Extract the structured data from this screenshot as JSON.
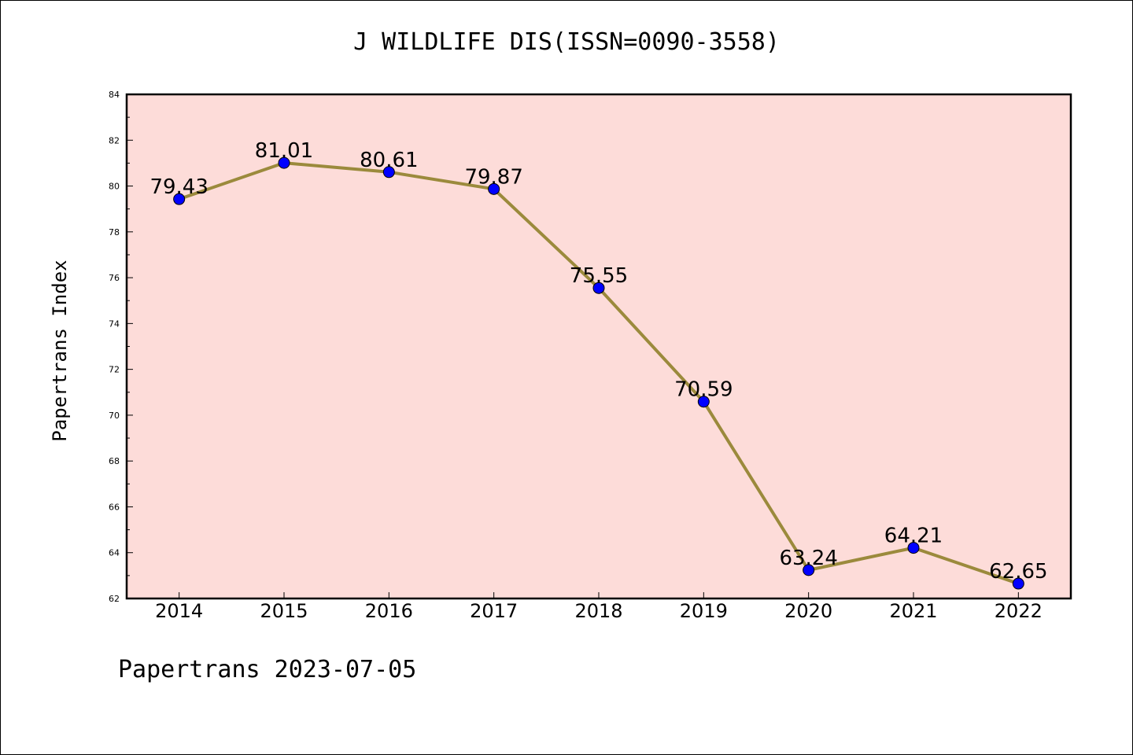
{
  "page": {
    "title": "J WILDLIFE DIS(ISSN=0090-3558)",
    "footer": "Papertrans 2023-07-05"
  },
  "chart_data": {
    "type": "line",
    "title": "J WILDLIFE DIS(ISSN=0090-3558)",
    "xlabel": "",
    "ylabel": "Papertrans Index",
    "categories": [
      "2014",
      "2015",
      "2016",
      "2017",
      "2018",
      "2019",
      "2020",
      "2021",
      "2022"
    ],
    "series": [
      {
        "values": [
          79.43,
          81.01,
          80.61,
          79.87,
          75.55,
          70.59,
          63.24,
          64.21,
          62.65
        ],
        "data_labels": [
          "79.43",
          "81.01",
          "80.61",
          "79.87",
          "75.55",
          "70.59",
          "63.24",
          "64.21",
          "62.65"
        ]
      }
    ],
    "ylim": [
      62,
      84
    ],
    "yticks": [
      "62",
      "64",
      "66",
      "68",
      "70",
      "72",
      "74",
      "76",
      "78",
      "80",
      "82",
      "84"
    ],
    "grid": false,
    "colors": {
      "plot_background": "#fddcd9",
      "line": "#9b8a3c",
      "marker": "#0000ff"
    }
  }
}
